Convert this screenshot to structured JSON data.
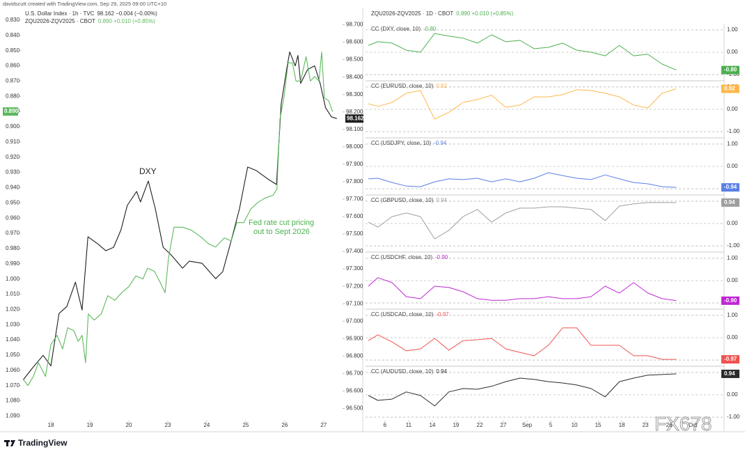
{
  "header": {
    "credit": "davidscutt created with TradingView.com, Sep 29, 2025 09:00 UTC+10"
  },
  "chart_data": [
    {
      "type": "line",
      "annotations": [
        "DXY",
        "Fed rate cut pricing",
        "out to Sept 2026"
      ],
      "xlim": [
        -0.77,
        7.45
      ],
      "xticks": [
        {
          "value": 0,
          "label": "18"
        },
        {
          "value": 1,
          "label": "19"
        },
        {
          "value": 2,
          "label": "20"
        },
        {
          "value": 3,
          "label": "23"
        },
        {
          "value": 4,
          "label": "24"
        },
        {
          "value": 5,
          "label": "25"
        },
        {
          "value": 6,
          "label": "26"
        },
        {
          "value": 7,
          "label": "27"
        }
      ],
      "ylim": [
        1.093,
        0.825
      ],
      "yticks": [
        {
          "value": 0.83,
          "label": "0.830"
        },
        {
          "value": 0.84,
          "label": "0.840"
        },
        {
          "value": 0.85,
          "label": "0.850"
        },
        {
          "value": 0.86,
          "label": "0.860"
        },
        {
          "value": 0.87,
          "label": "0.870"
        },
        {
          "value": 0.88,
          "label": "0.880"
        },
        {
          "value": 0.89,
          "label": "0.890"
        },
        {
          "value": 0.9,
          "label": "0.900"
        },
        {
          "value": 0.91,
          "label": "0.910"
        },
        {
          "value": 0.92,
          "label": "0.920"
        },
        {
          "value": 0.93,
          "label": "0.930"
        },
        {
          "value": 0.94,
          "label": "0.940"
        },
        {
          "value": 0.95,
          "label": "0.950"
        },
        {
          "value": 0.96,
          "label": "0.960"
        },
        {
          "value": 0.97,
          "label": "0.970"
        },
        {
          "value": 0.98,
          "label": "0.980"
        },
        {
          "value": 0.99,
          "label": "0.990"
        },
        {
          "value": 1.0,
          "label": "1.000"
        },
        {
          "value": 1.01,
          "label": "1.010"
        },
        {
          "value": 1.02,
          "label": "1.020"
        },
        {
          "value": 1.03,
          "label": "1.030"
        },
        {
          "value": 1.04,
          "label": "1.040"
        },
        {
          "value": 1.05,
          "label": "1.050"
        },
        {
          "value": 1.06,
          "label": "1.060"
        },
        {
          "value": 1.07,
          "label": "1.070"
        },
        {
          "value": 1.08,
          "label": "1.080"
        },
        {
          "value": 1.09,
          "label": "1.090"
        }
      ],
      "y2lim": [
        96.43,
        98.77
      ],
      "y2ticks": [
        {
          "value": 98.7,
          "label": "98.700"
        },
        {
          "value": 98.6,
          "label": "98.600"
        },
        {
          "value": 98.5,
          "label": "98.500"
        },
        {
          "value": 98.4,
          "label": "98.400"
        },
        {
          "value": 98.3,
          "label": "98.300"
        },
        {
          "value": 98.2,
          "label": "98.200"
        },
        {
          "value": 98.1,
          "label": "98.100"
        },
        {
          "value": 98.0,
          "label": "98.000"
        },
        {
          "value": 97.9,
          "label": "97.900"
        },
        {
          "value": 97.8,
          "label": "97.800"
        },
        {
          "value": 97.7,
          "label": "97.700"
        },
        {
          "value": 97.6,
          "label": "97.600"
        },
        {
          "value": 97.5,
          "label": "97.500"
        },
        {
          "value": 97.4,
          "label": "97.400"
        },
        {
          "value": 97.3,
          "label": "97.300"
        },
        {
          "value": 97.2,
          "label": "97.200"
        },
        {
          "value": 97.1,
          "label": "97.100"
        },
        {
          "value": 97.0,
          "label": "97.000"
        },
        {
          "value": 96.9,
          "label": "96.900"
        },
        {
          "value": 96.8,
          "label": "96.800"
        },
        {
          "value": 96.7,
          "label": "96.700"
        },
        {
          "value": 96.6,
          "label": "96.600"
        },
        {
          "value": 96.5,
          "label": "96.500"
        }
      ],
      "series": [
        {
          "name": "U.S. Dollar Index · 1h · TVC",
          "quote": "98.162 −0.004 (−0.00%)",
          "color": "#1e1e1e",
          "axis": "y2",
          "last_label": "98.162",
          "x": [
            -0.71,
            -0.5,
            -0.2,
            0.0,
            0.21,
            0.41,
            0.63,
            0.8,
            0.95,
            1.2,
            1.41,
            1.61,
            1.8,
            1.96,
            2.2,
            2.3,
            2.5,
            2.68,
            2.88,
            3.07,
            3.38,
            3.55,
            3.88,
            4.23,
            4.41,
            4.63,
            4.84,
            5.05,
            5.27,
            5.59,
            5.79,
            5.91,
            6.05,
            6.13,
            6.27,
            6.34,
            6.41,
            6.59,
            6.77,
            6.91,
            7.05,
            7.2,
            7.34
          ],
          "values": [
            96.664,
            96.724,
            96.804,
            96.744,
            97.044,
            97.084,
            97.224,
            97.064,
            97.484,
            97.444,
            97.404,
            97.424,
            97.524,
            97.664,
            97.744,
            97.684,
            97.804,
            97.644,
            97.424,
            97.384,
            97.304,
            97.344,
            97.332,
            97.244,
            97.284,
            97.464,
            97.644,
            97.884,
            97.864,
            97.812,
            97.784,
            98.244,
            98.444,
            98.544,
            98.464,
            98.524,
            98.364,
            98.444,
            98.464,
            98.364,
            98.224,
            98.172,
            98.162
          ]
        },
        {
          "name": "ZQU2026-ZQV2025 · CBOT",
          "quote": "0.890 +0.010 (+0.85%)",
          "color": "#5cb85c",
          "axis": "y",
          "last_label": "0.890",
          "x": [
            -0.71,
            -0.59,
            -0.45,
            -0.32,
            -0.14,
            0.0,
            0.16,
            0.3,
            0.43,
            0.59,
            0.7,
            0.8,
            0.89,
            0.96,
            1.11,
            1.29,
            1.46,
            1.64,
            1.82,
            2.0,
            2.18,
            2.36,
            2.48,
            2.66,
            2.8,
            2.93,
            3.02,
            3.16,
            3.38,
            3.61,
            3.88,
            4.05,
            4.23,
            4.45,
            4.63,
            4.77,
            4.95,
            5.13,
            5.3,
            5.48,
            5.7,
            5.8,
            5.88,
            5.98,
            6.09,
            6.2,
            6.29,
            6.41,
            6.55,
            6.66,
            6.77,
            6.88,
            6.95,
            7.02,
            7.13,
            7.23
          ],
          "values": [
            1.066,
            1.07,
            1.064,
            1.055,
            1.064,
            1.043,
            1.037,
            1.046,
            1.032,
            1.034,
            1.041,
            1.037,
            1.055,
            1.023,
            1.027,
            1.023,
            1.011,
            1.014,
            1.009,
            1.005,
            0.998,
            1.0,
            0.993,
            0.995,
            1.002,
            1.009,
            0.986,
            0.966,
            0.966,
            0.968,
            0.973,
            0.977,
            0.979,
            0.973,
            0.975,
            0.963,
            0.963,
            0.954,
            0.95,
            0.947,
            0.945,
            0.941,
            0.895,
            0.881,
            0.858,
            0.858,
            0.87,
            0.87,
            0.854,
            0.87,
            0.867,
            0.87,
            0.851,
            0.881,
            0.883,
            0.89
          ]
        }
      ]
    },
    {
      "type": "line",
      "title": "ZQU2026-ZQV2025 · 1D · CBOT",
      "quote": "0.890 +0.010 (+0.85%)",
      "x": [
        -0.7,
        -0.3,
        0.3,
        0.9,
        1.5,
        2.1,
        2.7,
        3.3,
        3.9,
        4.5,
        5.1,
        5.7,
        6.3,
        6.9,
        7.5,
        8.1,
        8.7,
        9.3,
        9.9,
        10.5,
        11.1,
        11.7,
        12.3
      ],
      "xlim": [
        -0.82,
        14.32
      ],
      "xticks": [
        {
          "value": 0,
          "label": "6"
        },
        {
          "value": 1,
          "label": "11"
        },
        {
          "value": 2,
          "label": "14"
        },
        {
          "value": 3,
          "label": "19"
        },
        {
          "value": 4,
          "label": "22"
        },
        {
          "value": 5,
          "label": "27"
        },
        {
          "value": 6,
          "label": "Sep"
        },
        {
          "value": 7,
          "label": "5"
        },
        {
          "value": 8,
          "label": "10"
        },
        {
          "value": 9,
          "label": "15"
        },
        {
          "value": 10,
          "label": "18"
        },
        {
          "value": 11,
          "label": "23"
        },
        {
          "value": 12,
          "label": "26"
        },
        {
          "value": 13,
          "label": "Oct"
        }
      ],
      "ylim": [
        -1.28,
        1.28
      ],
      "yticks": [
        {
          "value": 1,
          "label": "1.00"
        },
        {
          "value": 0,
          "label": "0.00"
        },
        {
          "value": -1,
          "label": "-1.00"
        }
      ],
      "panes": [
        {
          "name": "CC (DXY, close, 10)",
          "color": "#4caf50",
          "last_label": "-0.80",
          "values": [
            0.31,
            0.47,
            0.41,
            0.09,
            0,
            0.84,
            0.72,
            0.63,
            0.41,
            0.78,
            0.47,
            0.53,
            0.16,
            0.22,
            0.41,
            0.09,
            0,
            -0.16,
            0.31,
            -0.16,
            -0.09,
            -0.53,
            -0.8
          ]
        },
        {
          "name": "CC (EURUSD, close, 10)",
          "color": "#ffb74d",
          "last_label": "0.92",
          "values": [
            0.25,
            0.13,
            0.31,
            0.72,
            0.84,
            -0.44,
            -0.13,
            0.31,
            0.44,
            0.63,
            0.09,
            0.19,
            0.56,
            0.56,
            0.66,
            0.88,
            0.84,
            0.72,
            0.56,
            0.19,
            0.06,
            0.72,
            0.92
          ]
        },
        {
          "name": "CC (USDJPY, close, 10)",
          "color": "#5b7fe6",
          "last_label": "-0.94",
          "values": [
            -0.56,
            -0.53,
            -0.72,
            -0.88,
            -0.91,
            -0.69,
            -0.56,
            -0.59,
            -0.53,
            -0.69,
            -0.56,
            -0.69,
            -0.53,
            -0.28,
            -0.41,
            -0.53,
            -0.59,
            -0.38,
            -0.56,
            -0.72,
            -0.78,
            -0.91,
            -0.94
          ]
        },
        {
          "name": "CC (GBPUSD, close, 10)",
          "color": "#9e9e9e",
          "last_label": "0.94",
          "values": [
            0.06,
            -0.16,
            0.31,
            0.47,
            0.31,
            -0.69,
            -0.31,
            0.31,
            0.63,
            0.06,
            0.47,
            0.69,
            0.69,
            0.75,
            0.75,
            0.69,
            0.63,
            0.13,
            0.78,
            0.88,
            0.94,
            0.94,
            0.94
          ]
        },
        {
          "name": "CC (USDCHF, close, 10)",
          "color": "#c026d3",
          "last_label": "-0.90",
          "values": [
            -0.25,
            0.13,
            -0.09,
            -0.72,
            -0.81,
            -0.25,
            -0.31,
            -0.5,
            -0.81,
            -0.88,
            -0.88,
            -0.81,
            -0.81,
            -0.72,
            -0.81,
            -0.81,
            -0.72,
            -0.25,
            -0.56,
            -0.09,
            -0.56,
            -0.81,
            -0.9
          ]
        },
        {
          "name": "CC (USDCAD, close, 10)",
          "color": "#ef5350",
          "last_label": "-0.97",
          "values": [
            -0.13,
            0.13,
            -0.19,
            -0.59,
            -0.5,
            -0.03,
            -0.56,
            -0.13,
            -0.09,
            -0.03,
            -0.5,
            -0.66,
            -0.81,
            -0.34,
            0.44,
            0.44,
            -0.34,
            -0.34,
            -0.34,
            -0.81,
            -0.81,
            -0.97,
            -0.97
          ]
        },
        {
          "name": "CC (AUDUSD, close, 10)",
          "color": "#2b2b2b",
          "last_label": "0.94",
          "values": [
            -0.03,
            -0.25,
            -0.19,
            0.13,
            -0.03,
            -0.5,
            0.13,
            0.28,
            0.25,
            0.38,
            0.59,
            0.75,
            0.69,
            0.59,
            0.53,
            0.44,
            0.28,
            -0.09,
            0.59,
            0.75,
            0.88,
            0.91,
            0.94
          ]
        }
      ]
    }
  ],
  "footer": {
    "logo": "TradingView",
    "watermark": "FX678"
  }
}
